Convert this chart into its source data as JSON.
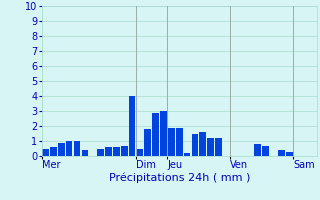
{
  "xlabel": "Précipitations 24h ( mm )",
  "background_color": "#d8f5f5",
  "bar_color": "#0044dd",
  "ylim": [
    0,
    10
  ],
  "yticks": [
    0,
    1,
    2,
    3,
    4,
    5,
    6,
    7,
    8,
    9,
    10
  ],
  "day_labels": [
    "Mer",
    "Dim",
    "Jeu",
    "Ven",
    "Sam"
  ],
  "n_bars": 35,
  "values": [
    0.5,
    0.6,
    0.9,
    1.0,
    1.0,
    0.4,
    0.0,
    0.5,
    0.6,
    0.6,
    0.7,
    4.0,
    0.5,
    1.8,
    2.9,
    3.0,
    1.9,
    1.9,
    0.2,
    1.5,
    1.6,
    1.2,
    1.2,
    0.0,
    0.0,
    0.0,
    0.0,
    0.8,
    0.7,
    0.0,
    0.4,
    0.3,
    0.0,
    0.0,
    0.0
  ],
  "vline_positions": [
    11.5,
    15.5,
    23.5,
    31.5
  ],
  "xlabel_color": "#0000bb",
  "tick_color": "#0000bb",
  "grid_color": "#aaddcc",
  "vline_color": "#888888",
  "xlabel_fontsize": 8,
  "ytick_fontsize": 7,
  "xtick_fontsize": 7
}
